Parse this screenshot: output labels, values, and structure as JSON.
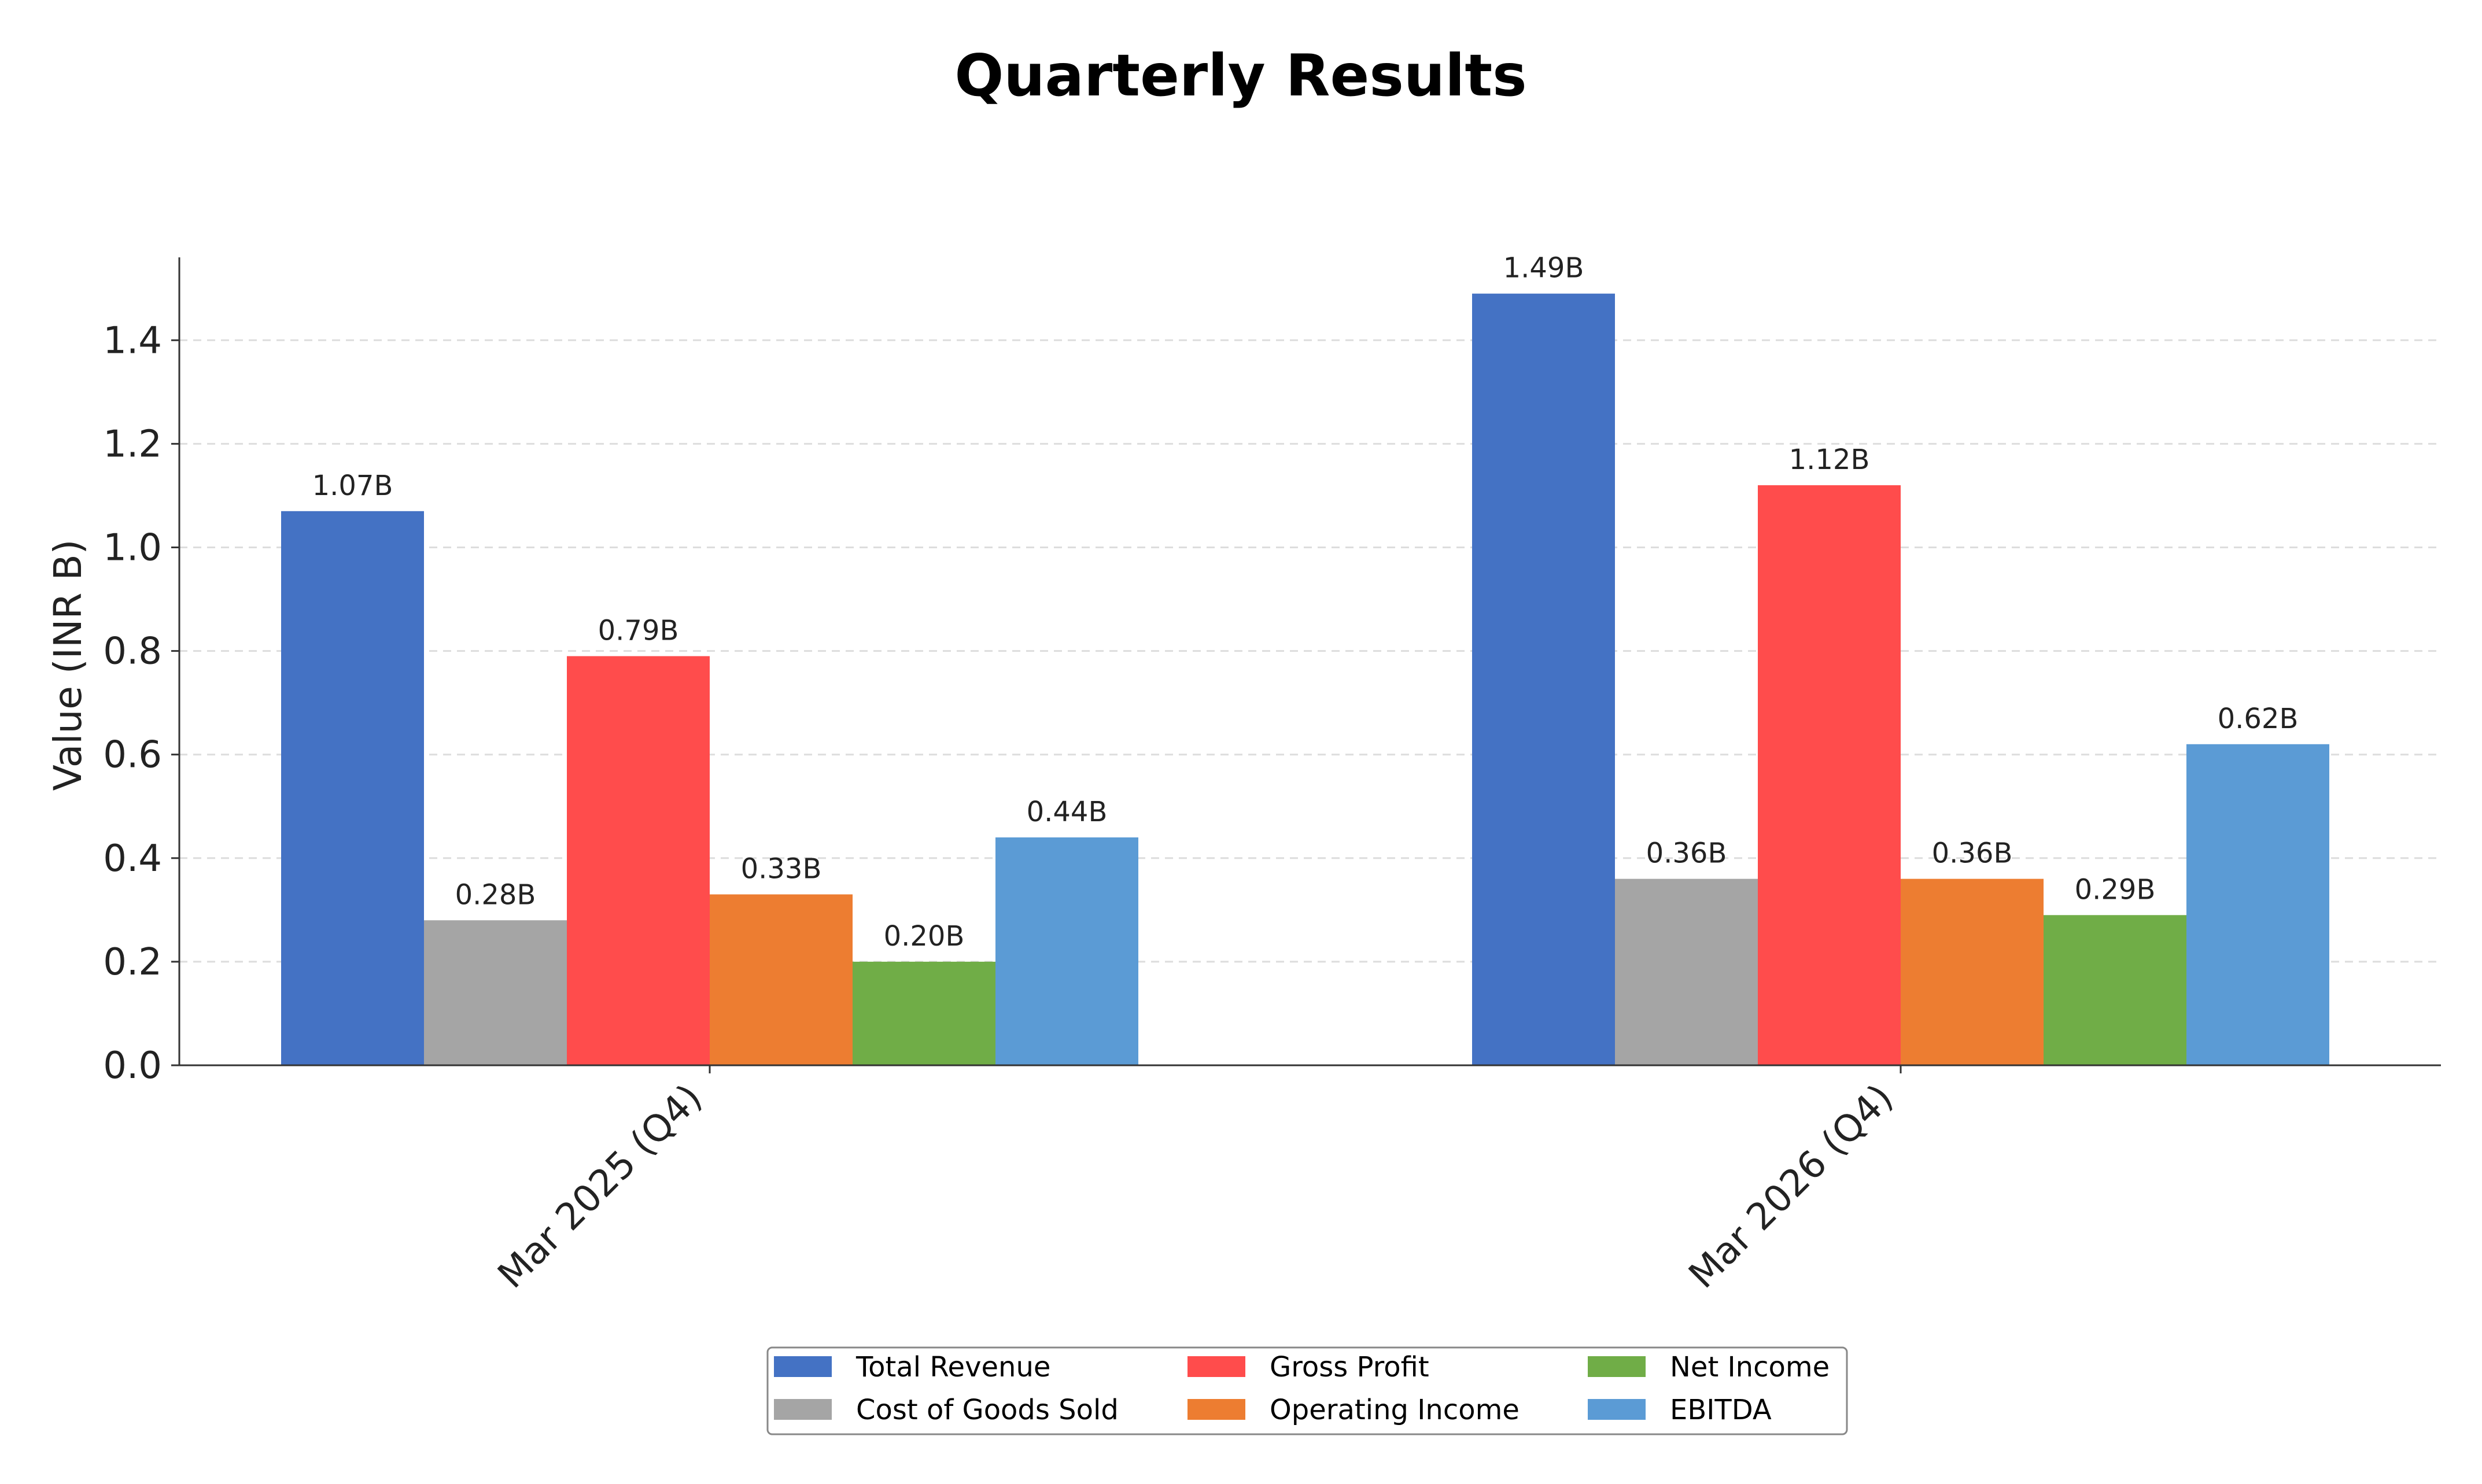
{
  "chart_data": {
    "type": "bar",
    "title": "Quarterly Results",
    "xlabel": "",
    "ylabel": "Value (INR B)",
    "categories": [
      "Mar 2025 (Q4)",
      "Mar 2026 (Q4)"
    ],
    "ylim": [
      0,
      1.56
    ],
    "yticks": [
      "0.0",
      "0.2",
      "0.4",
      "0.6",
      "0.8",
      "1.0",
      "1.2",
      "1.4"
    ],
    "grid": "horizontal dashed",
    "legend_position": "bottom-center",
    "series": [
      {
        "name": "Total Revenue",
        "color": "#4472C4",
        "values": [
          1.07,
          1.49
        ],
        "labels": [
          "1.07B",
          "1.49B"
        ]
      },
      {
        "name": "Cost of Goods Sold",
        "color": "#A5A5A5",
        "values": [
          0.28,
          0.36
        ],
        "labels": [
          "0.28B",
          "0.36B"
        ]
      },
      {
        "name": "Gross Profit",
        "color": "#FF4C4C",
        "values": [
          0.79,
          1.12
        ],
        "labels": [
          "0.79B",
          "1.12B"
        ]
      },
      {
        "name": "Operating Income",
        "color": "#ED7D31",
        "values": [
          0.33,
          0.36
        ],
        "labels": [
          "0.33B",
          "0.36B"
        ]
      },
      {
        "name": "Net Income",
        "color": "#70AD47",
        "values": [
          0.2,
          0.29
        ],
        "labels": [
          "0.20B",
          "0.29B"
        ]
      },
      {
        "name": "EBITDA",
        "color": "#5B9BD5",
        "values": [
          0.44,
          0.62
        ],
        "labels": [
          "0.44B",
          "0.62B"
        ]
      }
    ]
  }
}
